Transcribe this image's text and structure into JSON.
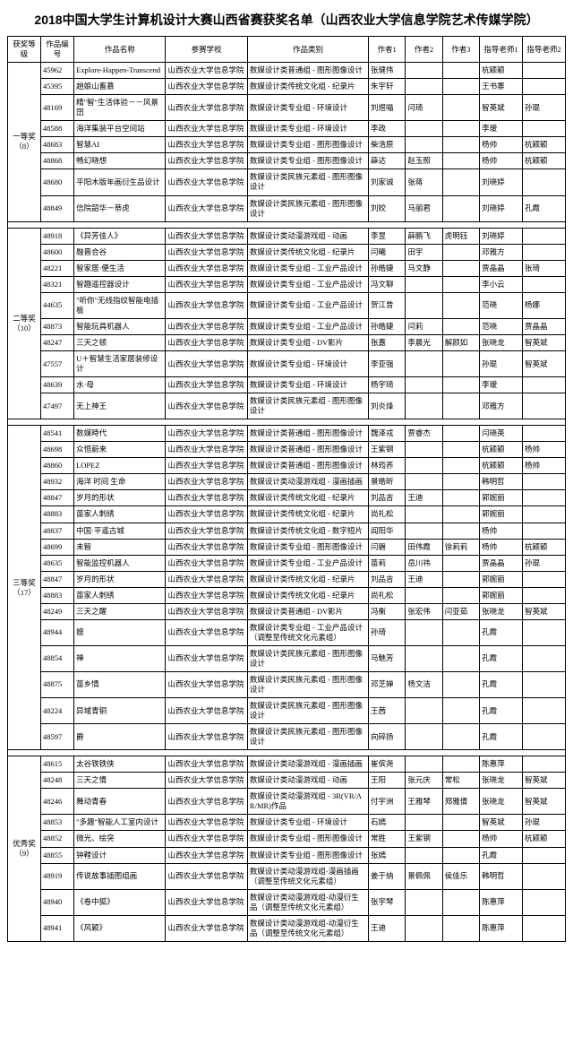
{
  "title": "2018中国大学生计算机设计大赛山西省赛获奖名单（山西农业大学信息学院艺术传媒学院）",
  "columns": [
    "获奖等级",
    "作品编号",
    "作品名称",
    "参赛学校",
    "作品类别",
    "作者1",
    "作者2",
    "作者3",
    "指导老师1",
    "指导老师2"
  ],
  "groups": [
    {
      "level": "一等奖（8）",
      "rows": [
        [
          "45962",
          "Explore-Happen-Transcend",
          "山西农业大学信息学院",
          "数媒设计类普通组 - 图形图像设计",
          "张健伟",
          "",
          "",
          "杭颖颖",
          ""
        ],
        [
          "45395",
          "趟娘山畜慕",
          "山西农业大学信息学院",
          "数媒设计类传统文化组 - 纪录片",
          "朱宇轩",
          "",
          "",
          "王书寨",
          ""
        ],
        [
          "48169",
          "精\"智\"生活体验－－风景囝",
          "山西农业大学信息学院",
          "数媒设计类专业组 - 环境设计",
          "刘煜喵",
          "闫琦",
          "",
          "智英斌",
          "孙琨"
        ],
        [
          "48588",
          "海洋集装平台空间站",
          "山西农业大学信息学院",
          "数媒设计类专业组 - 环境设计",
          "李政",
          "",
          "",
          "李瑷",
          ""
        ],
        [
          "48683",
          "智慧AI",
          "山西农业大学信息学院",
          "数媒设计类专业组 - 图形图像设计",
          "柴浩原",
          "",
          "",
          "杨帅",
          "杭颖颖"
        ],
        [
          "48868",
          "畅幻晓想",
          "山西农业大学信息学院",
          "数媒设计类专业组 - 图形图像设计",
          "薛达",
          "赵玉照",
          "",
          "杨帅",
          "杭颖颖"
        ],
        [
          "48680",
          "平阳木版年画衍生品设计",
          "山西农业大学信息学院",
          "数媒设计类民族元素组 - 图形图像设计",
          "刘家诚",
          "张蒋",
          "",
          "刘晓婷",
          ""
        ],
        [
          "48849",
          "信院韶华－蒂虎",
          "山西农业大学信息学院",
          "数媒设计类民族元素组 - 图形图像设计",
          "刘姣",
          "马丽君",
          "",
          "刘晓婷",
          "孔霞"
        ]
      ]
    },
    {
      "level": "二等奖（10）",
      "rows": [
        [
          "48918",
          "《异芳佳人》",
          "山西农业大学信息学院",
          "数媒设计类动漫游戏组 - 动画",
          "李昱",
          "薛鹏飞",
          "虎明钰",
          "刘晓婷",
          ""
        ],
        [
          "48600",
          "融晋合谷",
          "山西农业大学信息学院",
          "数媒设计类传统文化组 - 纪录片",
          "闫曦",
          "田宇",
          "",
          "邓雅方",
          ""
        ],
        [
          "48221",
          "智家居·便生活",
          "山西农业大学信息学院",
          "数媒设计类专业组 - 工业产品设计",
          "孙皓婕",
          "马文静",
          "",
          "贾晶晶",
          "张琦"
        ],
        [
          "48321",
          "智趣遥控器设计",
          "山西农业大学信息学院",
          "数媒设计类专业组 - 工业产品设计",
          "冯文聊",
          "",
          "",
          "李小云",
          ""
        ],
        [
          "44635",
          "\"听你\"无线指纹智能电插板",
          "山西农业大学信息学院",
          "数媒设计类专业组 - 工业产品设计",
          "贺江昔",
          "",
          "",
          "范晓",
          "杨娜"
        ],
        [
          "48873",
          "智能玩具机器人",
          "山西农业大学信息学院",
          "数媒设计类专业组 - 工业产品设计",
          "孙皓婕",
          "闫莉",
          "",
          "范晓",
          "贾晶晶"
        ],
        [
          "48247",
          "三天之顿",
          "山西农业大学信息学院",
          "数媒设计类专业组 - DV影片",
          "张嘉",
          "李晨光",
          "解颜如",
          "张晓龙",
          "智英斌"
        ],
        [
          "47557",
          "U＋智慧生活家居装修设计",
          "山西农业大学信息学院",
          "数媒设计类专业组 - 环境设计",
          "李亚强",
          "",
          "",
          "孙琨",
          "智英斌"
        ],
        [
          "48639",
          "水·母",
          "山西农业大学信息学院",
          "数媒设计类专业组 - 环境设计",
          "杨宇琦",
          "",
          "",
          "李瑷",
          ""
        ],
        [
          "47497",
          "无上神王",
          "山西农业大学信息学院",
          "数媒设计类民族元素组 - 图形图像设计",
          "刘炎烽",
          "",
          "",
          "邓雅方",
          ""
        ]
      ]
    },
    {
      "level": "三等奖（17）",
      "rows": [
        [
          "48541",
          "数媒時代",
          "山西农业大学信息学院",
          "数媒设计类普通组 - 图形图像设计",
          "魏泽戎",
          "贾睿杰",
          "",
          "闫晓英",
          ""
        ],
        [
          "48698",
          "众恒蔚来",
          "山西农业大学信息学院",
          "数媒设计类普通组 - 图形图像设计",
          "王紫钢",
          "",
          "",
          "杭颖颖",
          "杨帅"
        ],
        [
          "48860",
          "LOPEZ",
          "山西农业大学信息学院",
          "数媒设计类普通组 - 图形图像设计",
          "林筠荞",
          "",
          "",
          "杭颖颖",
          "杨帅"
        ],
        [
          "48932",
          "海洋 时间 生命",
          "山西农业大学信息学院",
          "数媒设计类动漫游戏组 - 漫画插画",
          "景皓昕",
          "",
          "",
          "韩明哲",
          ""
        ],
        [
          "48847",
          "岁月的形状",
          "山西农业大学信息学院",
          "数媒设计类传统文化组 - 纪录片",
          "刘品吉",
          "王迪",
          "",
          "郭婉丽",
          ""
        ],
        [
          "48883",
          "苗家人刺绣",
          "山西农业大学信息学院",
          "数媒设计类传统文化组 - 纪录片",
          "尚礼松",
          "",
          "",
          "郭婉丽",
          ""
        ],
        [
          "48837",
          "中国·平遥古城",
          "山西农业大学信息学院",
          "数媒设计类传统文化组 - 数字短片",
          "阎阳华",
          "",
          "",
          "杨帅",
          ""
        ],
        [
          "48699",
          "未智",
          "山西农业大学信息学院",
          "数媒设计类专业组 - 图形图像设计",
          "闫磬",
          "田伟霞",
          "徐莉莉",
          "杨帅",
          "杭颖颖"
        ],
        [
          "48635",
          "智能监控机器人",
          "山西农业大学信息学院",
          "数媒设计类专业组 - 工业产品设计",
          "苗莉",
          "岳川祎",
          "",
          "贾晶晶",
          "孙琨"
        ],
        [
          "48847",
          "岁月的形状",
          "山西农业大学信息学院",
          "数媒设计类传统文化组 - 纪录片",
          "刘品吉",
          "王迪",
          "",
          "郭婉丽",
          ""
        ],
        [
          "48883",
          "苗家人刺绣",
          "山西农业大学信息学院",
          "数媒设计类传统文化组 - 纪录片",
          "尚礼松",
          "",
          "",
          "郭婉丽",
          ""
        ],
        [
          "48249",
          "三天之醒",
          "山西农业大学信息学院",
          "数媒设计类普通组 - DV影片",
          "冯衡",
          "张宏伟",
          "闫亚茹",
          "张晓龙",
          "智英斌"
        ],
        [
          "48944",
          "嬗",
          "山西农业大学信息学院",
          "数媒设计类专业组 - 工业产品设计（调整至传统文化元素组）",
          "孙琦",
          "",
          "",
          "孔霞",
          ""
        ],
        [
          "48854",
          "禅",
          "山西农业大学信息学院",
          "数媒设计类民族元素组 - 图形图像设计",
          "马魅芳",
          "",
          "",
          "孔霞",
          ""
        ],
        [
          "48875",
          "苗乡情",
          "山西农业大学信息学院",
          "数媒设计类民族元素组 - 图形图像设计",
          "邓芝婵",
          "杨文洁",
          "",
          "孔霞",
          ""
        ],
        [
          "48224",
          "异域青铜",
          "山西农业大学信息学院",
          "数媒设计类民族元素组 - 图形图像设计",
          "王茜",
          "",
          "",
          "孔霞",
          ""
        ],
        [
          "48597",
          "爵",
          "山西农业大学信息学院",
          "数媒设计类民族元素组 - 图形图像设计",
          "向碎扬",
          "",
          "",
          "孔霞",
          ""
        ]
      ]
    },
    {
      "level": "优秀奖（9）",
      "rows": [
        [
          "48615",
          "太谷铁铁侠",
          "山西农业大学信息学院",
          "数媒设计类动漫游戏组 - 漫画插画",
          "崔傧尧",
          "",
          "",
          "陈惠萍",
          ""
        ],
        [
          "48248",
          "三天之情",
          "山西农业大学信息学院",
          "数媒设计类动漫游戏组 - 动画",
          "王阳",
          "张元庆",
          "常松",
          "张晓龙",
          "智英斌"
        ],
        [
          "48246",
          "舞动青春",
          "山西农业大学信息学院",
          "数媒设计类动漫游戏组 - 3R(VR/AR/MR)作品",
          "付宇洲",
          "王雅琴",
          "郑雅倩",
          "张晓龙",
          "智英斌"
        ],
        [
          "48853",
          "\"多趣\"智能人工室内设计",
          "山西农业大学信息学院",
          "数媒设计类专业组 - 环境设计",
          "石嫣",
          "",
          "",
          "智英斌",
          "孙琨"
        ],
        [
          "48852",
          "微光、绘突",
          "山西农业大学信息学院",
          "数媒设计类专业组 - 图形图像设计",
          "常胜",
          "王紫钢",
          "",
          "杨帅",
          "杭颖颖"
        ],
        [
          "48855",
          "钟鞺设计",
          "山西农业大学信息学院",
          "数媒设计类专业组 - 图形图像设计",
          "张嫣",
          "",
          "",
          "孔霞",
          ""
        ],
        [
          "48919",
          "传说故事插图组画",
          "山西农业大学信息学院",
          "数媒设计类动漫游戏组-漫画插画（调整至传统文化元素组）",
          "姜于纳",
          "景佩佩",
          "侯佳乐",
          "韩明哲",
          ""
        ],
        [
          "48940",
          "《卷中狐》",
          "山西农业大学信息学院",
          "数媒设计类动漫游戏组-动漫衍生品（调整至传统文化元素组）",
          "张宇琴",
          "",
          "",
          "陈惠萍",
          ""
        ],
        [
          "48941",
          "《风颖》",
          "山西农业大学信息学院",
          "数媒设计类动漫游戏组-动漫衍生品（调整至传统文化元素组）",
          "王迪",
          "",
          "",
          "陈惠萍",
          ""
        ]
      ]
    }
  ]
}
